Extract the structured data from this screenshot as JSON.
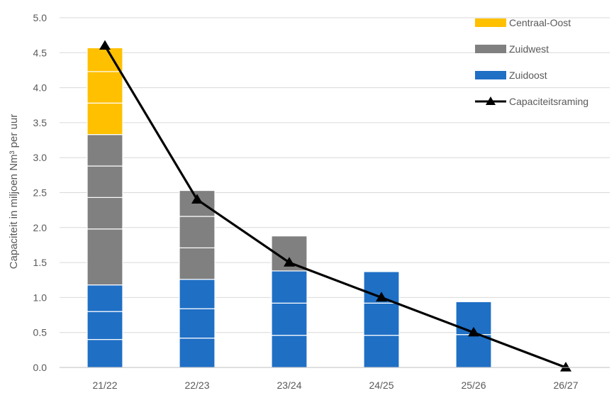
{
  "chart_data": {
    "type": "bar",
    "title": "",
    "xlabel": "",
    "ylabel": "Capaciteit in miljoen Nm³ per uur",
    "categories": [
      "21/22",
      "22/23",
      "23/24",
      "24/25",
      "25/26",
      "26/27"
    ],
    "ylim": [
      0,
      5
    ],
    "y_ticks": [
      "0.0",
      "0.5",
      "1.0",
      "1.5",
      "2.0",
      "2.5",
      "3.0",
      "3.5",
      "4.0",
      "4.5",
      "5.0"
    ],
    "series": [
      {
        "name": "Zuidoost",
        "kind": "stacked-bar",
        "color": "#1F6FC5",
        "values": [
          1.18,
          1.26,
          1.38,
          1.37,
          0.94,
          0
        ],
        "segments": [
          [
            0.4,
            0.4,
            0.38
          ],
          [
            0.42,
            0.42,
            0.42
          ],
          [
            0.46,
            0.46,
            0.46
          ],
          [
            0.46,
            0.46,
            0.45
          ],
          [
            0.47,
            0.47
          ],
          []
        ]
      },
      {
        "name": "Zuidwest",
        "kind": "stacked-bar",
        "color": "#808080",
        "values": [
          2.15,
          1.27,
          0.5,
          0,
          0,
          0
        ],
        "segments": [
          [
            0.8,
            0.45,
            0.45,
            0.45
          ],
          [
            0.45,
            0.45,
            0.37
          ],
          [
            0.5
          ],
          [],
          [],
          []
        ]
      },
      {
        "name": "Centraal-Oost",
        "kind": "stacked-bar",
        "color": "#FFC000",
        "values": [
          1.24,
          0,
          0,
          0,
          0,
          0
        ],
        "segments": [
          [
            0.45,
            0.45,
            0.34
          ],
          [],
          [],
          [],
          [],
          []
        ]
      },
      {
        "name": "Capaciteitsraming",
        "kind": "line",
        "color": "#000000",
        "marker": "triangle",
        "values": [
          4.6,
          2.4,
          1.5,
          1.0,
          0.5,
          0.0
        ]
      }
    ],
    "legend": {
      "position": "top-right",
      "items": [
        {
          "name": "Centraal-Oost",
          "color": "#FFC000",
          "symbol": "box"
        },
        {
          "name": "Zuidwest",
          "color": "#808080",
          "symbol": "box"
        },
        {
          "name": "Zuidoost",
          "color": "#1F6FC5",
          "symbol": "box"
        },
        {
          "name": "Capaciteitsraming",
          "color": "#000000",
          "symbol": "line-triangle"
        }
      ]
    },
    "grid": true
  }
}
